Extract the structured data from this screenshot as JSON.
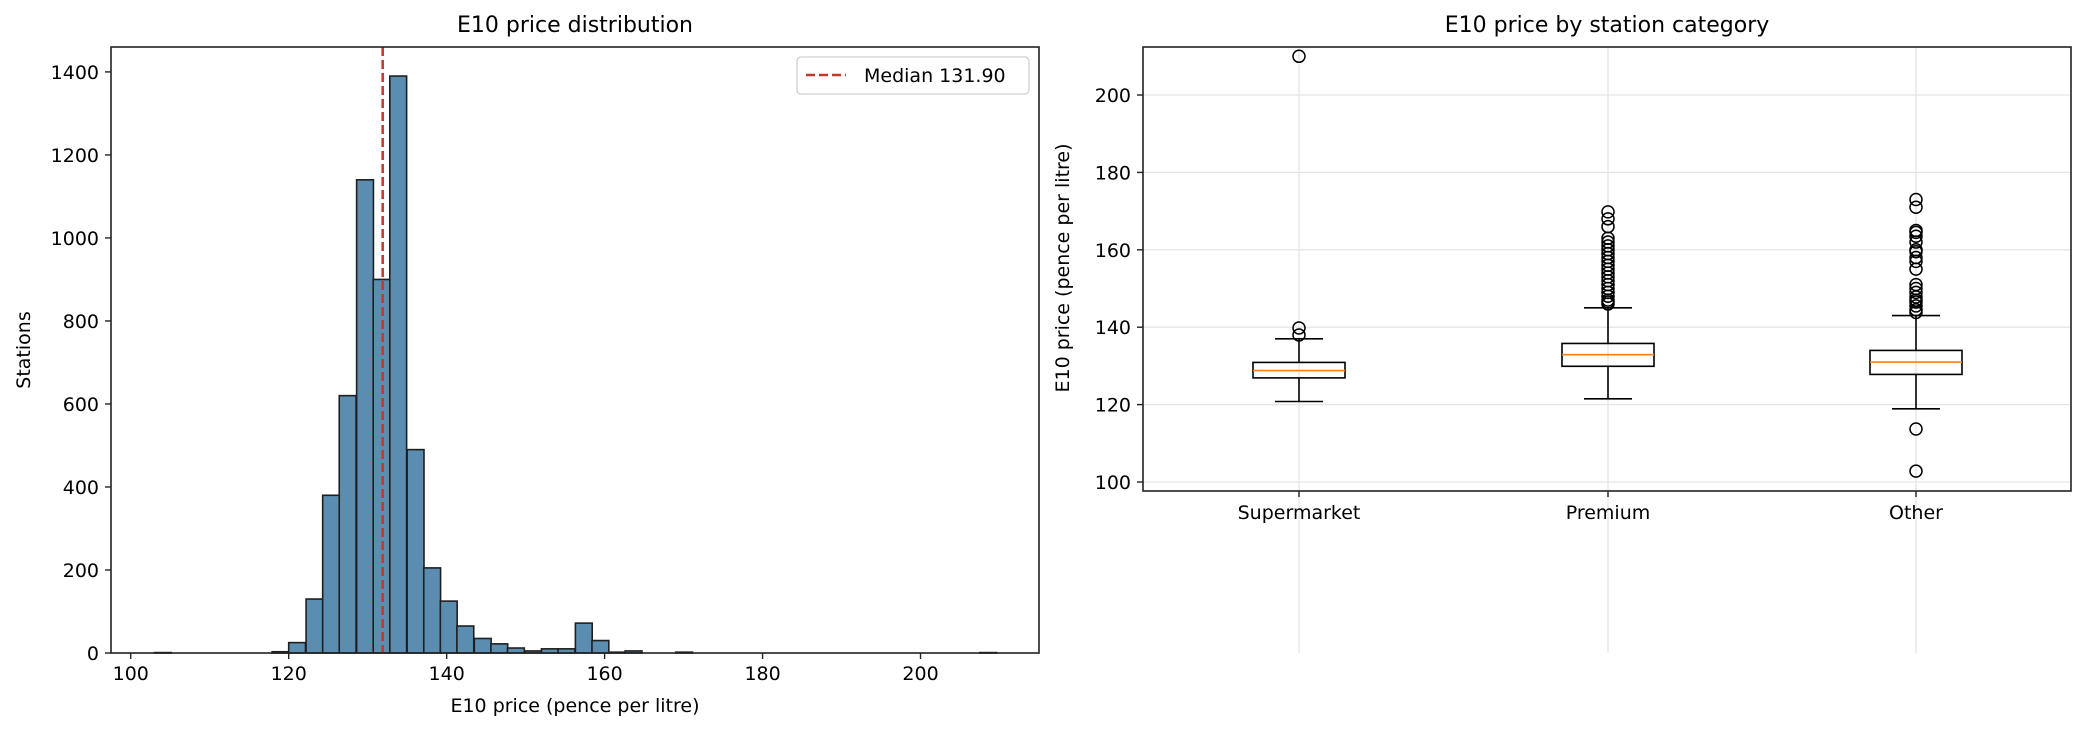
{
  "chart_data": [
    {
      "type": "bar",
      "subtype": "histogram",
      "title": "E10 price distribution",
      "xlabel": "E10 price (pence per litre)",
      "ylabel": "Stations",
      "xlim": [
        97.5,
        215
      ],
      "ylim": [
        0,
        1460
      ],
      "xticks": [
        100,
        120,
        140,
        160,
        180,
        200
      ],
      "yticks": [
        0,
        200,
        400,
        600,
        800,
        1000,
        1200,
        1400
      ],
      "grid": false,
      "bar_color": "#5b8db0",
      "edge_color": "#1f1f1f",
      "bin_width": 2.13,
      "bins": [
        {
          "x0": 103.0,
          "count": 1
        },
        {
          "x0": 117.9,
          "count": 3
        },
        {
          "x0": 120.0,
          "count": 25
        },
        {
          "x0": 122.2,
          "count": 130
        },
        {
          "x0": 124.3,
          "count": 380
        },
        {
          "x0": 126.4,
          "count": 620
        },
        {
          "x0": 128.6,
          "count": 1140
        },
        {
          "x0": 130.7,
          "count": 900
        },
        {
          "x0": 132.8,
          "count": 1390
        },
        {
          "x0": 135.0,
          "count": 490
        },
        {
          "x0": 137.1,
          "count": 205
        },
        {
          "x0": 139.2,
          "count": 125
        },
        {
          "x0": 141.3,
          "count": 65
        },
        {
          "x0": 143.5,
          "count": 35
        },
        {
          "x0": 145.6,
          "count": 22
        },
        {
          "x0": 147.7,
          "count": 12
        },
        {
          "x0": 149.9,
          "count": 5
        },
        {
          "x0": 152.0,
          "count": 10
        },
        {
          "x0": 154.1,
          "count": 10
        },
        {
          "x0": 156.3,
          "count": 72
        },
        {
          "x0": 158.4,
          "count": 30
        },
        {
          "x0": 160.5,
          "count": 2
        },
        {
          "x0": 162.6,
          "count": 5
        },
        {
          "x0": 169.0,
          "count": 2
        },
        {
          "x0": 207.5,
          "count": 1
        }
      ],
      "vline": {
        "x": 131.9,
        "color": "#c0392b",
        "style": "dashed",
        "label": "Median 131.90"
      },
      "legend": {
        "position": "upper right",
        "entries": [
          "Median 131.90"
        ]
      }
    },
    {
      "type": "box",
      "title": "E10 price by station category",
      "xlabel": "",
      "ylabel": "E10 price (pence per litre)",
      "ylim": [
        97.5,
        215
      ],
      "yticks": [
        100,
        120,
        140,
        160,
        180,
        200
      ],
      "grid": true,
      "categories": [
        "Supermarket",
        "Premium",
        "Other"
      ],
      "median_color": "#ff7f0e",
      "boxes": [
        {
          "name": "Supermarket",
          "whisker_low": 120.8,
          "q1": 126.9,
          "median": 128.8,
          "q3": 130.9,
          "whisker_high": 137.0,
          "outliers": [
            138.0,
            139.8,
            210.0
          ]
        },
        {
          "name": "Premium",
          "whisker_low": 121.5,
          "q1": 129.9,
          "median": 132.9,
          "q3": 135.8,
          "whisker_high": 145.0,
          "outliers": [
            146.0,
            146.5,
            147.0,
            148.0,
            149.0,
            150.0,
            151.0,
            152.0,
            153.0,
            154.0,
            155.0,
            156.0,
            157.0,
            158.0,
            159.0,
            160.0,
            161.0,
            162.0,
            163.0,
            166.0,
            168.0,
            169.8
          ]
        },
        {
          "name": "Other",
          "whisker_low": 118.9,
          "q1": 127.8,
          "median": 131.0,
          "q3": 134.0,
          "whisker_high": 143.0,
          "outliers": [
            102.8,
            113.7,
            143.8,
            144.5,
            145.5,
            146.5,
            147.0,
            147.8,
            149.0,
            150.0,
            151.0,
            155.0,
            157.0,
            158.0,
            159.5,
            160.0,
            162.0,
            163.5,
            164.5,
            165.0,
            171.0,
            173.0
          ]
        }
      ]
    }
  ]
}
